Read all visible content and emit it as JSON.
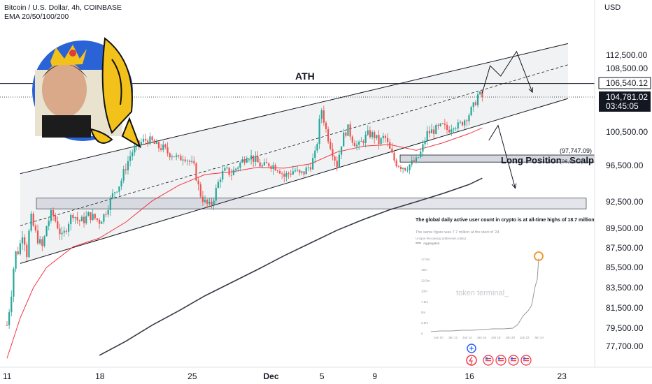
{
  "header": {
    "title": "Bitcoin / U.S. Dollar, 4h, COINBASE",
    "indicator": "EMA 20/50/100/200",
    "currency": "USD"
  },
  "price_labels": {
    "ath_price": "106,540.12",
    "current_price": "104,781.02",
    "countdown": "03:45:05"
  },
  "annotations": {
    "ath": "ATH",
    "long_position": "Long Position - Scalp",
    "long_price": "(97,747.09)",
    "long_price_2": "(96,6…3)"
  },
  "inset": {
    "title": "The global daily active user count in crypto is at all-time highs of 18.7 million",
    "subtitle": "The same figure was 7.7 million at the start of '24",
    "legend_heading": "Unique fee-paying addresses (daily)",
    "legend_item": "Aggregated",
    "watermark": "token terminal_",
    "y_ticks": [
      "17.5m",
      "15m",
      "12.5m",
      "10m",
      "7.5m",
      "5m",
      "2.5m",
      "0"
    ],
    "x_ticks": [
      "Jan 10",
      "Jan 12",
      "Jan 14",
      "Jan 16",
      "Jan 18",
      "Jan 20",
      "Jan 22",
      "Jan 24"
    ]
  },
  "colors": {
    "up": "#26a69a",
    "down": "#ef5350",
    "ema_fast": "#f23645",
    "ema_slow": "#363a45",
    "channel": "#131722",
    "zone": "#d1d4dc"
  },
  "chart_data": {
    "type": "candlestick",
    "y_axis_ticks": [
      "112,500.00",
      "108,500.00",
      "100,500.00",
      "96,500.00",
      "92,500.00",
      "89,500.00",
      "87,500.00",
      "85,500.00",
      "83,500.00",
      "81,500.00",
      "79,500.00",
      "77,700.00"
    ],
    "x_axis_ticks": [
      "11",
      "18",
      "25",
      "Dec",
      "5",
      "9",
      "16",
      "23"
    ],
    "ylim": [
      76500,
      116500
    ],
    "price_path": [
      [
        11.0,
        79800
      ],
      [
        11.3,
        82600
      ],
      [
        11.6,
        86900
      ],
      [
        11.9,
        87200
      ],
      [
        12.2,
        89300
      ],
      [
        12.5,
        86900
      ],
      [
        12.8,
        90800
      ],
      [
        13.1,
        89200
      ],
      [
        13.4,
        88200
      ],
      [
        13.7,
        87500
      ],
      [
        14.0,
        89800
      ],
      [
        14.4,
        91300
      ],
      [
        14.8,
        89900
      ],
      [
        15.2,
        88400
      ],
      [
        15.6,
        90100
      ],
      [
        16.0,
        91200
      ],
      [
        16.4,
        90300
      ],
      [
        16.8,
        90400
      ],
      [
        17.2,
        91000
      ],
      [
        17.6,
        90700
      ],
      [
        18.0,
        90300
      ],
      [
        18.4,
        91100
      ],
      [
        18.8,
        92600
      ],
      [
        19.2,
        93800
      ],
      [
        19.6,
        94600
      ],
      [
        20.0,
        96400
      ],
      [
        20.4,
        97900
      ],
      [
        20.8,
        98900
      ],
      [
        21.2,
        99300
      ],
      [
        21.6,
        99600
      ],
      [
        22.0,
        99300
      ],
      [
        22.4,
        98700
      ],
      [
        22.8,
        98600
      ],
      [
        23.2,
        98000
      ],
      [
        23.6,
        97800
      ],
      [
        24.0,
        97200
      ],
      [
        24.4,
        97700
      ],
      [
        24.8,
        97000
      ],
      [
        25.2,
        96200
      ],
      [
        25.6,
        93500
      ],
      [
        26.0,
        92400
      ],
      [
        26.4,
        91900
      ],
      [
        26.8,
        93600
      ],
      [
        27.2,
        95500
      ],
      [
        27.6,
        95900
      ],
      [
        28.0,
        95600
      ],
      [
        28.4,
        96300
      ],
      [
        28.8,
        97000
      ],
      [
        29.2,
        97800
      ],
      [
        29.6,
        97400
      ],
      [
        30.0,
        96800
      ],
      [
        30.4,
        96300
      ],
      [
        30.8,
        96700
      ],
      [
        31.2,
        96500
      ],
      [
        31.6,
        96200
      ],
      [
        32.0,
        95300
      ],
      [
        32.4,
        95700
      ],
      [
        32.8,
        96000
      ],
      [
        33.2,
        95400
      ],
      [
        33.6,
        95900
      ],
      [
        34.0,
        96600
      ],
      [
        34.4,
        98000
      ],
      [
        34.8,
        103500
      ],
      [
        35.2,
        100500
      ],
      [
        35.6,
        98400
      ],
      [
        36.0,
        96600
      ],
      [
        36.4,
        99700
      ],
      [
        36.8,
        101000
      ],
      [
        37.2,
        99500
      ],
      [
        37.6,
        98700
      ],
      [
        38.0,
        99600
      ],
      [
        38.4,
        100300
      ],
      [
        38.8,
        100100
      ],
      [
        39.2,
        99200
      ],
      [
        39.6,
        100000
      ],
      [
        40.0,
        98300
      ],
      [
        40.4,
        96900
      ],
      [
        40.8,
        96500
      ],
      [
        41.2,
        96300
      ],
      [
        41.6,
        96700
      ],
      [
        42.0,
        97000
      ],
      [
        42.4,
        98200
      ],
      [
        42.8,
        100300
      ],
      [
        43.2,
        100600
      ],
      [
        43.6,
        100900
      ],
      [
        44.0,
        101200
      ],
      [
        44.4,
        100700
      ],
      [
        44.8,
        101500
      ],
      [
        45.2,
        101200
      ],
      [
        45.6,
        101900
      ],
      [
        46.0,
        102700
      ],
      [
        46.4,
        103800
      ],
      [
        46.7,
        105200
      ],
      [
        47.0,
        104781
      ]
    ],
    "ema_fast_points": [
      [
        11.0,
        76500
      ],
      [
        12.0,
        80500
      ],
      [
        13.0,
        83500
      ],
      [
        14.0,
        85500
      ],
      [
        16.0,
        87600
      ],
      [
        18.0,
        88500
      ],
      [
        20.0,
        90200
      ],
      [
        22.0,
        92600
      ],
      [
        24.0,
        94300
      ],
      [
        26.0,
        95500
      ],
      [
        28.0,
        95800
      ],
      [
        30.0,
        96300
      ],
      [
        32.0,
        96200
      ],
      [
        34.0,
        96700
      ],
      [
        36.0,
        98100
      ],
      [
        38.0,
        98800
      ],
      [
        40.0,
        99000
      ],
      [
        42.0,
        98300
      ],
      [
        44.0,
        99200
      ],
      [
        46.0,
        100300
      ],
      [
        47.0,
        101000
      ]
    ],
    "ema_slow_points": [
      [
        18.0,
        76800
      ],
      [
        20.0,
        78200
      ],
      [
        22.0,
        79800
      ],
      [
        24.0,
        81200
      ],
      [
        26.0,
        82700
      ],
      [
        28.0,
        84000
      ],
      [
        30.0,
        85300
      ],
      [
        32.0,
        86700
      ],
      [
        34.0,
        88000
      ],
      [
        36.0,
        89300
      ],
      [
        38.0,
        90500
      ],
      [
        40.0,
        91600
      ],
      [
        42.0,
        92500
      ],
      [
        44.0,
        93400
      ],
      [
        46.0,
        94400
      ],
      [
        47.0,
        95100
      ]
    ],
    "channel_upper": [
      [
        12.0,
        95600
      ],
      [
        53.5,
        116000
      ]
    ],
    "channel_mid": [
      [
        12.0,
        89800
      ],
      [
        53.5,
        109600
      ]
    ],
    "channel_lower": [
      [
        12.0,
        85900
      ],
      [
        53.5,
        104600
      ]
    ],
    "ath_level": 106540.12,
    "current_level": 104781.02,
    "long_zone": [
      96900,
      97747.09
    ],
    "support_zone": [
      91700,
      92900
    ],
    "projection_up": [
      [
        47.0,
        105300
      ],
      [
        47.6,
        109300
      ],
      [
        48.4,
        107500
      ],
      [
        49.6,
        113600
      ],
      [
        50.8,
        105400
      ]
    ],
    "projection_down": [
      [
        47.5,
        99500
      ],
      [
        48.2,
        101300
      ],
      [
        49.5,
        94000
      ]
    ]
  }
}
